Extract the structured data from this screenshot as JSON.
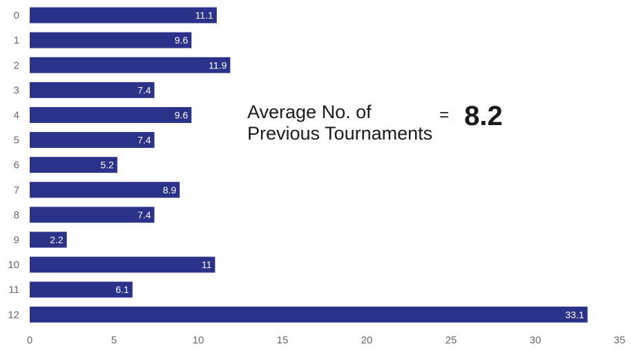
{
  "chart_data": {
    "type": "bar",
    "orientation": "horizontal",
    "categories": [
      "0",
      "1",
      "2",
      "3",
      "4",
      "5",
      "6",
      "7",
      "8",
      "9",
      "10",
      "11",
      "12"
    ],
    "values": [
      11.1,
      9.6,
      11.9,
      7.4,
      9.6,
      7.4,
      5.2,
      8.9,
      7.4,
      2.2,
      11,
      6.1,
      33.1
    ],
    "x_ticks": [
      "0",
      "5",
      "10",
      "15",
      "20",
      "25",
      "30",
      "35"
    ],
    "xlim": [
      0,
      35
    ],
    "title": "",
    "xlabel": "",
    "ylabel": "",
    "grid": false,
    "bar_color": "#2b3289",
    "data_label_color": "#ffffff"
  },
  "annotation": {
    "line1": "Average No. of",
    "line2": "Previous Tournaments",
    "equals": "=",
    "value": "8.2"
  }
}
